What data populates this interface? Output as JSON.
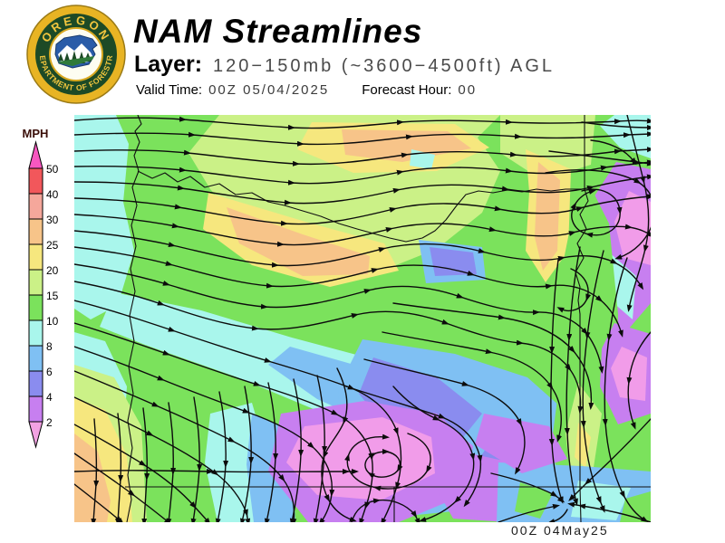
{
  "header": {
    "title": "NAM Streamlines",
    "layer_label": "Layer:",
    "layer_value": "120−150mb (~3600−4500ft) AGL",
    "valid_time_label": "Valid Time:",
    "valid_time_value": "00Z 05/04/2025",
    "forecast_hour_label": "Forecast Hour:",
    "forecast_hour_value": "00"
  },
  "logo": {
    "top_text": "OREGON",
    "bottom_text": "DEPARTMENT OF FORESTRY",
    "outer_ring_color": "#e8b424",
    "ring_color": "#1d4a26",
    "letter_color": "#f2c63e",
    "emblem_blue": "#2a5ca8",
    "tree_green": "#1d4a26"
  },
  "legend": {
    "title": "MPH",
    "title_color": "#3a0e08",
    "above_range_color": "#f857c0",
    "below_range_color": "#f2a2e2",
    "ticks": [
      "50",
      "40",
      "30",
      "25",
      "20",
      "15",
      "10",
      "8",
      "6",
      "4",
      "2"
    ],
    "segment_colors": [
      "#f2575b",
      "#f5a79b",
      "#f7c489",
      "#f6e77e",
      "#cbf187",
      "#7be25c",
      "#a9f6ec",
      "#7fc0f3",
      "#8a8cef",
      "#c77ff0"
    ]
  },
  "map": {
    "stamp": "00Z 04May25",
    "description": "NAM model streamlines over Oregon, wind speed shaded in MPH",
    "field_regions": [
      {
        "f": "#7be25c",
        "p": "0,0 636,0 636,450 0,450"
      },
      {
        "f": "#cbf187",
        "p": "160,0 470,0 445,25 470,62 450,108 400,148 330,176 250,158 190,128 150,82 126,42"
      },
      {
        "f": "#f6e77e",
        "p": "262,8 420,10 458,36 400,62 308,64 246,38"
      },
      {
        "f": "#f7c489",
        "p": "295,16 412,18 438,37 362,52 299,44"
      },
      {
        "f": "#f6e77e",
        "p": "148,86 255,118 342,142 358,172 282,190 196,166 142,126"
      },
      {
        "f": "#f7c489",
        "p": "168,102 252,132 326,156 324,176 252,178 182,142"
      },
      {
        "f": "#cbf187",
        "p": "470,0 575,0 570,55 516,72 470,42"
      },
      {
        "f": "#f6e77e",
        "p": "498,38 548,60 545,150 520,185 498,150 502,85"
      },
      {
        "f": "#f7c489",
        "p": "512,52 536,72 533,150 517,172 508,135 510,88"
      },
      {
        "f": "#a9f6ec",
        "p": "0,0 46,0 60,32 54,96 66,150 48,210 18,226 0,214"
      },
      {
        "f": "#a9f6ec",
        "p": "596,0 636,0 636,48 602,36 580,12"
      },
      {
        "f": "#a9f6ec",
        "p": "372,38 398,44 394,60 370,56"
      },
      {
        "f": "#a9f6ec",
        "p": "44,196 140,216 240,246 330,270 424,300 448,344 398,374 300,340 180,290 78,254 28,234"
      },
      {
        "f": "#7fc0f3",
        "p": "238,256 330,282 418,312 428,350 368,358 268,314 214,276"
      },
      {
        "f": "#a9f6ec",
        "p": "0,240 34,250 58,300 54,360 20,382 0,372"
      },
      {
        "f": "#cbf187",
        "p": "0,276 44,290 74,344 80,450 0,450"
      },
      {
        "f": "#f6e77e",
        "p": "0,312 34,326 58,376 64,450 0,450"
      },
      {
        "f": "#f7c489",
        "p": "0,352 26,372 40,426 36,450 0,450"
      },
      {
        "f": "#a9f6ec",
        "p": "150,330 196,318 214,380 206,450 158,450 144,384"
      },
      {
        "f": "#7fc0f3",
        "p": "196,330 238,348 244,450 198,450 190,386"
      },
      {
        "f": "#7fc0f3",
        "p": "318,248 420,264 500,290 545,330 540,392 478,432 378,442 308,420 288,358 292,300"
      },
      {
        "f": "#8a8cef",
        "p": "330,268 400,290 450,330 418,370 348,350 314,308"
      },
      {
        "f": "#8a8cef",
        "p": "468,348 520,364 514,406 464,420 444,384"
      },
      {
        "f": "#7fc0f3",
        "p": "380,138 450,146 454,182 388,186"
      },
      {
        "f": "#8a8cef",
        "p": "392,146 440,152 444,176 398,178"
      },
      {
        "f": "#c77ff0",
        "p": "598,52 636,60 636,208 600,250 566,216 556,150 570,96"
      },
      {
        "f": "#f19ce9",
        "p": "612,84 636,96 636,166 606,158 596,118"
      },
      {
        "f": "#a9f6ec",
        "p": "588,150 620,178 616,226 586,200 578,168"
      },
      {
        "f": "#7be25c",
        "p": "560,60 590,120 600,220 598,320 570,402 544,436 526,368 540,260 540,160"
      },
      {
        "f": "#cbf187",
        "p": "556,296 582,330 572,396 550,420 542,352"
      },
      {
        "f": "#f6e77e",
        "p": "556,340 570,356 564,390 552,378"
      },
      {
        "f": "#c77ff0",
        "p": "596,230 636,242 636,330 600,342 580,300 582,258"
      },
      {
        "f": "#f19ce9",
        "p": "604,256 632,268 630,316 602,312 592,280"
      },
      {
        "f": "#c77ff0",
        "p": "228,330 320,316 400,330 440,366 430,420 358,450 258,450 214,394"
      },
      {
        "f": "#f19ce9",
        "p": "254,344 340,334 394,356 398,396 338,426 268,420 234,384"
      },
      {
        "f": "#c77ff0",
        "p": "418,370 492,386 516,422 478,450 418,446 398,410"
      },
      {
        "f": "#7fc0f3",
        "p": "468,384 560,388 636,394 636,450 466,450"
      },
      {
        "f": "#a9f6ec",
        "p": "556,404 614,412 598,448 548,444"
      },
      {
        "f": "#7be25c",
        "p": "492,406 528,418 514,446 486,438"
      },
      {
        "f": "#7be25c",
        "p": "608,424 636,416 636,450 602,450"
      },
      {
        "f": "#c77ff0",
        "p": "452,330 524,344 544,380 494,396 442,364"
      }
    ],
    "borders": [
      "M70,0 L74,10 L67,18 L72,30 L66,45 L71,62 L64,80 L69,100 L63,122 L68,145 L62,170 L67,195 L61,222 L66,250 L60,278 L65,308 L59,338 L64,368 L59,398 L63,425 L58,450",
      "M70,62 L86,70 L100,64 L114,74 L128,68 L144,80 L160,76 L178,88 L196,86 L214,96 L232,100 L252,106 L272,112 L292,120 L312,126 L330,131 L348,136 L366,140 L384,136 L398,128 L410,116 L422,100 L432,88 L446,84 L462,86 L478,83 L494,85 L510,82 L526,84 L542,82 L563,82",
      "M563,0 L563,82 L567,95 L558,110 L565,126 L555,142 L562,158 L553,174 L558,190 L556,205 L558,220 L558,411 L559,450",
      "M56,411 L636,411",
      "M353,411 L353,450"
    ],
    "streamlines": [
      "M0,6 C40,3 80,2 120,5 C160,8 200,12 240,14 C280,16 320,12 360,8 C400,5 440,6 480,8 C520,10 560,9 600,7 C615,6 628,6 636,7",
      "M0,22 C45,20 90,19 130,22 C170,25 210,30 250,32 C290,34 330,29 370,24 C410,20 450,21 490,24 C530,27 570,25 610,22 L636,21",
      "M0,40 C45,38 85,38 125,42 C165,46 205,52 245,54 C285,56 325,50 365,44 C405,39 445,40 485,44 C525,48 565,45 600,40 L636,38",
      "M0,57 C40,56 80,57 120,61 C160,65 200,72 240,75 C280,78 320,71 360,63 C400,56 440,57 480,62 C520,67 555,64 585,58 L636,52",
      "M0,74 C40,74 80,76 118,81 C156,86 196,94 236,97 C276,100 316,92 356,83 C396,75 436,76 476,82 C516,88 545,86 570,80 C595,74 620,70 636,68",
      "M0,92 C40,93 78,96 115,102 C152,108 192,117 232,120 C272,123 312,114 352,104 C392,95 430,97 468,104 C506,111 535,110 558,103 C580,97 610,92 636,90",
      "M0,110 C38,112 75,116 112,123 C149,130 188,140 228,143 C268,146 308,136 348,126 C388,117 425,119 462,127 C499,135 528,136 550,130 C570,125 592,122 612,124 C625,126 632,130 636,133",
      "M0,128 C36,131 72,136 108,144 C144,152 182,163 222,166 C262,169 302,158 340,148 C378,139 415,142 450,151 C485,160 515,163 538,158 C558,154 580,155 596,163 C610,170 620,180 626,190",
      "M0,146 C35,150 70,156 105,165 C140,174 178,186 216,189 C254,192 294,181 332,171 C370,162 405,166 438,176 C470,186 500,192 524,189 C546,186 566,192 580,204 C592,214 600,228 604,242",
      "M0,165 C34,170 68,177 102,187 C136,197 172,209 210,212 C248,215 288,204 324,194 C360,185 394,190 426,201 C456,211 486,219 510,218 C532,217 552,226 564,240 C574,252 580,268 582,282",
      "M0,184 C32,190 64,198 96,209 C128,220 164,232 200,236 C236,240 274,230 310,221 C346,213 380,219 410,230 C438,240 468,250 492,252 C514,254 534,264 546,280 C556,293 560,310 558,326",
      "M0,205 C36,214 72,226 108,238 C144,250 180,262 214,272 C248,282 280,292 306,302 C330,312 348,328 356,350 C362,368 362,390 356,410 C352,424 346,438 340,450",
      "M0,230 C34,240 68,252 102,264 C136,276 170,288 202,298 C234,308 264,318 288,330 C310,341 324,358 328,378 C331,394 328,414 322,432 L316,450",
      "M0,256 C32,267 64,279 96,292 C128,305 160,317 190,328 C218,338 244,350 262,366 C278,380 286,398 284,418 C283,430 278,442 272,450",
      "M0,283 C30,295 60,308 90,321 C120,334 148,347 174,360 C198,372 218,386 230,402 C240,415 244,432 242,450",
      "M0,312 C28,325 56,339 84,353 C112,367 136,381 156,396 C172,408 184,424 190,440 L192,450",
      "M0,342 C26,356 52,371 76,386 C98,400 118,416 132,432 C138,439 144,445 148,450",
      "M0,374 C22,389 44,404 64,419 C80,431 94,442 104,450",
      "M0,408 C18,422 36,436 50,448 L52,450",
      "M22,336 C24,360 25,384 24,408 C23,422 22,436 21,450",
      "M48,330 C51,354 52,378 51,402 C50,418 49,434 48,450",
      "M76,324 C79,348 81,374 80,400 C79,417 78,434 77,450",
      "M104,318 C108,342 110,368 109,394 C108,413 106,432 104,450",
      "M132,312 C136,336 139,362 138,390 C137,410 134,430 131,450",
      "M160,306 C165,330 168,358 167,386 C166,408 162,430 158,450",
      "M188,300 C193,326 196,354 195,382 C194,406 190,428 185,450",
      "M214,296 C220,322 223,350 222,378 C221,403 217,427 212,450",
      "M242,292 C248,318 251,346 250,374 C249,400 245,426 240,450",
      "M268,288 C274,314 277,342 276,370 C275,398 271,424 266,450",
      "M290,280 C300,300 304,320 298,338 C293,352 282,362 276,376 C271,390 272,408 280,424 C286,436 296,444 308,448",
      "M368,352 C390,360 398,376 390,392 C382,408 356,416 334,412 C312,408 298,394 302,378 C306,362 324,354 344,356",
      "M344,372 C356,374 362,382 358,391 C353,400 337,403 327,397 C318,391 319,380 330,375 C334,373 339,372 344,372",
      "M352,300 C366,316 382,328 400,336 C420,345 436,358 440,378 C443,394 436,412 422,426 C412,436 398,444 384,448",
      "M306,450 C310,436 320,428 334,426 C350,424 366,430 376,442 L380,450",
      "M352,208 C392,214 432,218 472,224 C504,229 532,240 550,260 C566,278 572,300 570,322",
      "M340,240 C380,248 420,254 458,262 C488,268 512,280 526,300 C538,317 540,338 534,358",
      "M320,270 C358,280 396,288 432,298 C460,306 482,320 492,340 C500,356 498,376 488,394",
      "M300,300 C336,312 372,322 406,334 C430,344 444,360 448,380 C450,396 444,414 432,430",
      "M610,158 C600,186 594,216 590,246 C586,276 584,308 586,340 C588,368 594,396 606,420 C612,432 620,442 630,448",
      "M584,150 C576,180 570,212 566,244 C562,276 560,310 562,342 C564,370 570,400 580,426 L584,436",
      "M558,146 C552,178 548,212 546,246 C544,280 542,316 544,350 C545,376 548,404 554,428",
      "M534,160 C530,192 528,226 527,260 C526,294 525,330 527,362 C528,384 532,408 538,426",
      "M460,396 C486,402 510,410 530,420 L538,426",
      "M636,336 C614,360 590,384 566,406 L548,424",
      "M636,450 C612,442 586,436 560,432 L548,430",
      "M468,450 C490,442 512,436 532,432",
      "M544,436 C540,444 534,448 526,450",
      "M560,84 C582,78 600,88 602,106 C604,124 588,136 568,132 C552,129 544,114 552,100 C556,92 564,86 572,84",
      "M520,64 C556,58 596,60 622,74 C638,84 644,102 638,120 C632,138 618,152 600,158",
      "M610,0 C616,24 622,48 628,72 C634,96 636,122 630,148 C625,170 616,192 612,214",
      "M570,28 C590,30 608,38 618,52",
      "M548,170 C562,176 570,188 566,202 C562,214 548,220 536,214",
      "M560,8 C588,12 616,14 636,14",
      "M524,40 C556,44 590,48 620,52 L636,54",
      "M636,240 C622,256 614,274 612,294 C610,310 612,328 618,344",
      "M0,394 C50,392 100,393 150,394 C200,395 250,394 300,394 L310,394"
    ]
  }
}
